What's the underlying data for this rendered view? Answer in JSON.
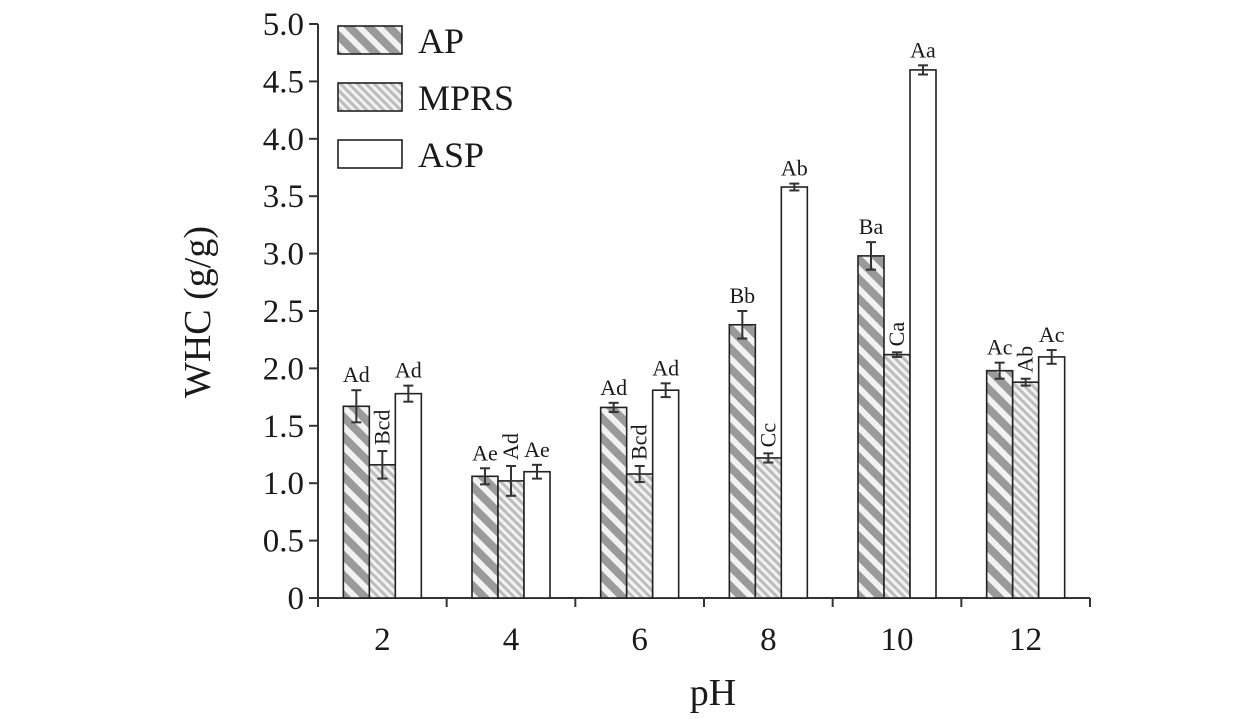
{
  "chart_data": {
    "type": "bar",
    "title": "",
    "xlabel": "pH",
    "ylabel": "WHC (g/g)",
    "ylim": [
      0,
      5.0
    ],
    "yticks": [
      "0",
      "0.5",
      "1.0",
      "1.5",
      "2.0",
      "2.5",
      "3.0",
      "3.5",
      "4.0",
      "4.5",
      "5.0"
    ],
    "categories": [
      "2",
      "4",
      "6",
      "8",
      "10",
      "12"
    ],
    "legend_position": "top-left",
    "series": [
      {
        "name": "AP",
        "pattern": "dense-diagonal-hatch",
        "color": "#9a9a9a",
        "values": [
          1.67,
          1.06,
          1.66,
          2.38,
          2.98,
          1.98
        ],
        "errors": [
          0.14,
          0.07,
          0.04,
          0.12,
          0.12,
          0.07
        ],
        "labels": [
          "Ad",
          "Ae",
          "Ad",
          "Bb",
          "Ba",
          "Ac"
        ]
      },
      {
        "name": "MPRS",
        "pattern": "fine-diagonal-hatch",
        "color": "#bdbdbd",
        "values": [
          1.16,
          1.02,
          1.08,
          1.22,
          2.12,
          1.88
        ],
        "errors": [
          0.12,
          0.13,
          0.07,
          0.04,
          0.02,
          0.03
        ],
        "labels": [
          "Bcd",
          "Ad",
          "Bcd",
          "Cc",
          "Ca",
          "Ab"
        ]
      },
      {
        "name": "ASP",
        "pattern": "none",
        "color": "#ffffff",
        "values": [
          1.78,
          1.1,
          1.81,
          3.58,
          4.6,
          2.1
        ],
        "errors": [
          0.07,
          0.06,
          0.06,
          0.03,
          0.04,
          0.06
        ],
        "labels": [
          "Ad",
          "Ae",
          "Ad",
          "Ab",
          "Aa",
          "Ac"
        ]
      }
    ]
  }
}
